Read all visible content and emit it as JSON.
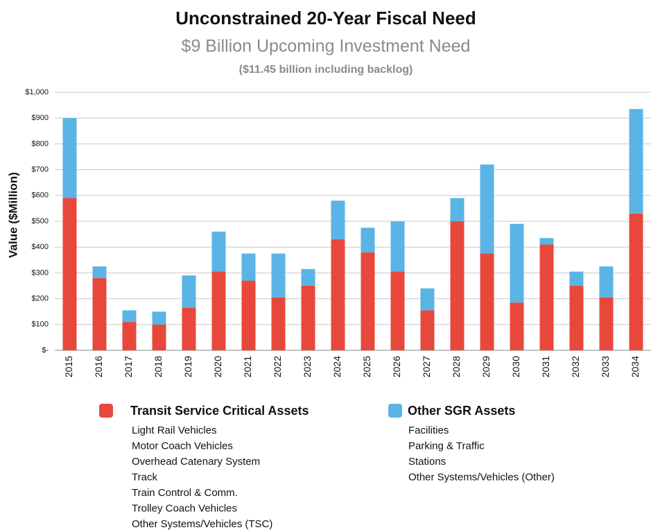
{
  "chart_data": {
    "type": "stacked_bar",
    "title": "Unconstrained 20-Year Fiscal Need",
    "subtitle": "$9 Billion Upcoming Investment Need",
    "note": "($11.45 billion including backlog)",
    "y_label": "Value ($Million)",
    "categories": [
      "2015",
      "2016",
      "2017",
      "2018",
      "2019",
      "2020",
      "2021",
      "2022",
      "2023",
      "2024",
      "2025",
      "2026",
      "2027",
      "2028",
      "2029",
      "2030",
      "2031",
      "2032",
      "2033",
      "2034"
    ],
    "series": [
      {
        "name": "Transit Service Critical Assets",
        "color": "#e8483b",
        "values": [
          590,
          280,
          110,
          100,
          165,
          305,
          270,
          205,
          250,
          430,
          380,
          305,
          155,
          500,
          375,
          185,
          410,
          250,
          205,
          530
        ],
        "members": [
          "Light Rail Vehicles",
          "Motor Coach Vehicles",
          "Overhead Catenary System",
          "Track",
          "Train Control &  Comm.",
          "Trolley Coach Vehicles",
          "Other Systems/Vehicles (TSC)"
        ]
      },
      {
        "name": "Other SGR Assets",
        "color": "#5ab4e5",
        "values": [
          310,
          45,
          45,
          50,
          125,
          155,
          105,
          170,
          65,
          150,
          95,
          195,
          85,
          90,
          345,
          305,
          25,
          55,
          120,
          405
        ],
        "members": [
          "Facilities",
          "Parking & Traffic",
          "Stations",
          "Other Systems/Vehicles (Other)"
        ]
      }
    ],
    "ylim": [
      0,
      1000
    ],
    "yticks": [
      {
        "value": 0,
        "label": "$-"
      },
      {
        "value": 100,
        "label": "$100"
      },
      {
        "value": 200,
        "label": "$200"
      },
      {
        "value": 300,
        "label": "$300"
      },
      {
        "value": 400,
        "label": "$400"
      },
      {
        "value": 500,
        "label": "$500"
      },
      {
        "value": 600,
        "label": "$600"
      },
      {
        "value": 700,
        "label": "$700"
      },
      {
        "value": 800,
        "label": "$800"
      },
      {
        "value": 900,
        "label": "$900"
      },
      {
        "value": 1000,
        "label": "$1,000"
      }
    ],
    "grid": true
  }
}
